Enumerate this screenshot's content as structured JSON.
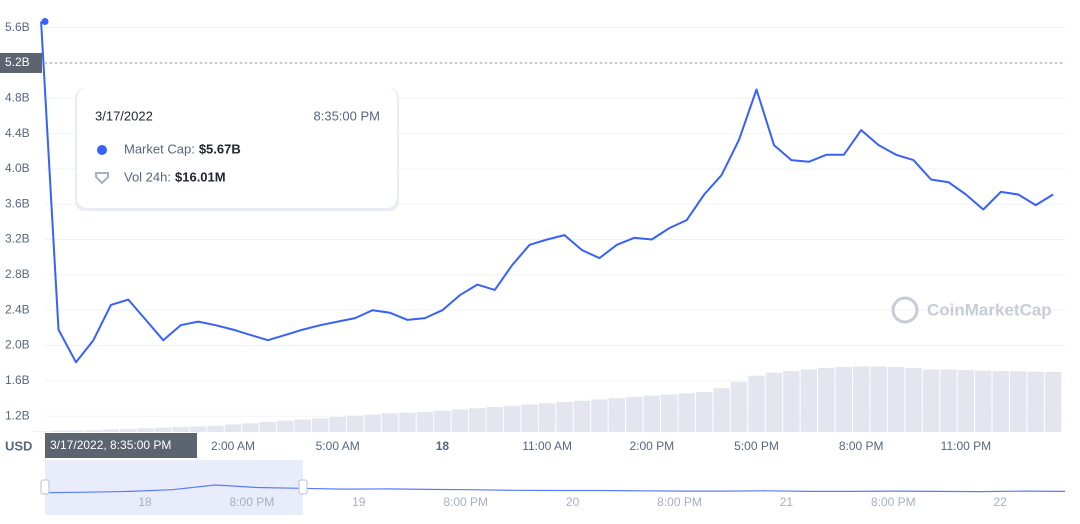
{
  "chart_data": {
    "type": "line",
    "currency_label": "USD",
    "categories": [
      null,
      null,
      null,
      null,
      null,
      null,
      null,
      null,
      null,
      null,
      null,
      "2:00 AM",
      null,
      null,
      null,
      null,
      null,
      "5:00 AM",
      null,
      null,
      null,
      null,
      null,
      "18",
      null,
      null,
      null,
      null,
      null,
      "11:00 AM",
      null,
      null,
      null,
      null,
      null,
      "2:00 PM",
      null,
      null,
      null,
      null,
      null,
      "5:00 PM",
      null,
      null,
      null,
      null,
      null,
      "8:00 PM",
      null,
      null,
      null,
      null,
      null,
      "11:00 PM",
      null,
      null,
      null,
      null,
      null
    ],
    "series": [
      {
        "name": "Market Cap",
        "color": "#3861fb",
        "values": [
          5.67,
          2.18,
          1.81,
          2.06,
          2.46,
          2.52,
          2.29,
          2.06,
          2.23,
          2.27,
          2.23,
          2.18,
          2.12,
          2.06,
          2.12,
          2.18,
          2.23,
          2.27,
          2.31,
          2.4,
          2.37,
          2.29,
          2.31,
          2.4,
          2.57,
          2.69,
          2.63,
          2.91,
          3.14,
          3.2,
          3.25,
          3.08,
          2.99,
          3.14,
          3.22,
          3.2,
          3.33,
          3.42,
          3.71,
          3.93,
          4.33,
          4.9,
          4.27,
          4.1,
          4.08,
          4.16,
          4.16,
          4.44,
          4.27,
          4.16,
          4.1,
          3.88,
          3.85,
          3.71,
          3.54,
          3.74,
          3.71,
          3.59,
          3.71
        ]
      },
      {
        "name": "Vol 24h",
        "color": "#e3e6ee",
        "axis": "y2",
        "values": [
          2,
          4,
          5,
          6,
          8,
          10,
          12,
          14,
          16,
          18,
          20,
          24,
          28,
          32,
          36,
          40,
          44,
          48,
          52,
          56,
          60,
          62,
          64,
          68,
          72,
          76,
          80,
          84,
          88,
          92,
          96,
          100,
          104,
          108,
          112,
          116,
          120,
          124,
          128,
          140,
          160,
          180,
          190,
          195,
          200,
          205,
          208,
          210,
          210,
          208,
          205,
          200,
          200,
          198,
          196,
          195,
          194,
          193,
          192
        ]
      }
    ],
    "ylim": [
      1.02,
      5.8
    ],
    "yticks": [
      {
        "value": 1.2,
        "label": "1.2B"
      },
      {
        "value": 1.6,
        "label": "1.6B"
      },
      {
        "value": 2.0,
        "label": "2.0B"
      },
      {
        "value": 2.4,
        "label": "2.4B"
      },
      {
        "value": 2.8,
        "label": "2.8B"
      },
      {
        "value": 3.2,
        "label": "3.2B"
      },
      {
        "value": 3.6,
        "label": "3.6B"
      },
      {
        "value": 4.0,
        "label": "4.0B"
      },
      {
        "value": 4.4,
        "label": "4.4B"
      },
      {
        "value": 4.8,
        "label": "4.8B"
      },
      {
        "value": 5.2,
        "label": "5.2B"
      },
      {
        "value": 5.6,
        "label": "5.6B"
      }
    ],
    "y2lim": [
      0,
      1350
    ],
    "grid": true,
    "crosshair": {
      "y": 5.2,
      "x_label": "3/17/2022, 8:35:00 PM"
    },
    "tooltip": {
      "date": "3/17/2022",
      "time": "8:35:00 PM",
      "rows": [
        {
          "label": "Market Cap:",
          "value": "$5.67B"
        },
        {
          "label": "Vol 24h:",
          "value": "$16.01M"
        }
      ]
    },
    "watermark": "CoinMarketCap",
    "navigator": {
      "labels": [
        "18",
        "8:00 PM",
        "19",
        "8:00 PM",
        "20",
        "8:00 PM",
        "21",
        "8:00 PM",
        "22"
      ],
      "values": [
        2.1,
        2.3,
        2.6,
        3.2,
        4.9,
        4.0,
        3.7,
        3.4,
        3.5,
        3.3,
        3.2,
        3.0,
        2.9,
        2.9,
        2.8,
        2.7,
        2.7,
        2.8,
        2.6,
        2.6,
        2.7,
        2.6,
        2.5,
        2.7,
        2.6
      ],
      "ylim": [
        -6,
        14
      ]
    }
  }
}
